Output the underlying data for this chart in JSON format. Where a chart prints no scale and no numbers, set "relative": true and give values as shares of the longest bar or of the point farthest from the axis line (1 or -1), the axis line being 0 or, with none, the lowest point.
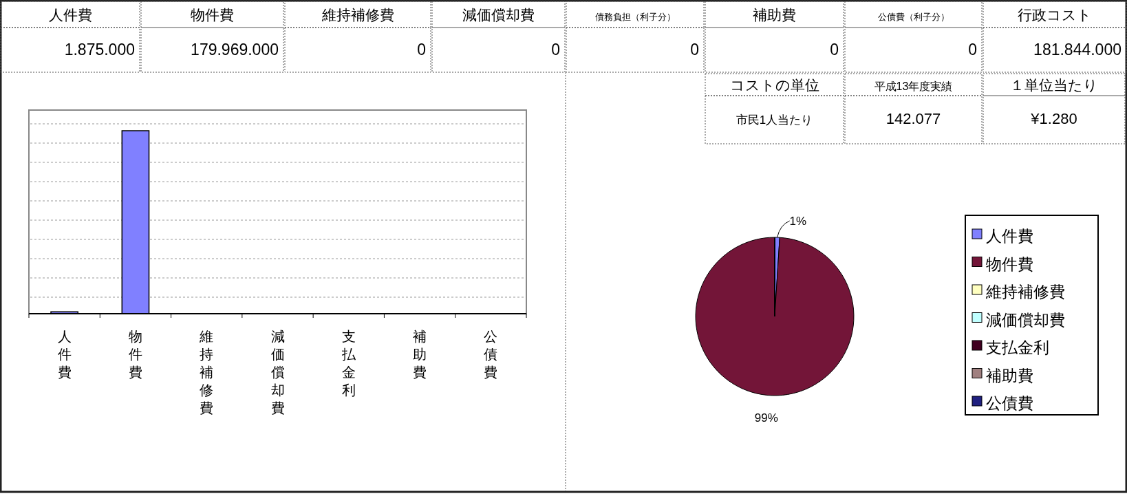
{
  "chart_data": [
    {
      "type": "other",
      "annotations": [
        "人件費",
        "物件費",
        "維持補修費",
        "減価償却費",
        "債務負担（利子分）",
        "補助費",
        "公債費（利子分）",
        "行政コスト",
        "1.875.000",
        "179.969.000",
        "0",
        "0",
        "0",
        "0",
        "0",
        "181.844.000",
        "コストの単位",
        "平成13年度実績",
        "１単位当たり",
        "市民1人当たり",
        "142.077",
        "¥1.280"
      ]
    },
    {
      "type": "bar",
      "relative": true,
      "grid": "y",
      "categories": [
        "人件費",
        "物件費",
        "維持補修費",
        "減価償却費",
        "支払金利",
        "補助費",
        "公債費"
      ],
      "series": [
        {
          "color": "#8080ff",
          "values": [
            0.0104,
            1,
            0,
            0,
            0,
            0,
            0
          ]
        }
      ]
    },
    {
      "type": "pie",
      "legend": "right",
      "categories": [
        "人件費",
        "物件費",
        "維持補修費",
        "減価償却費",
        "支払金利",
        "補助費",
        "公債費"
      ],
      "values": [
        1,
        99,
        0,
        0,
        0,
        0,
        0
      ],
      "colors": [
        "#8080ff",
        "#731538",
        "#ffffc0",
        "#c0ffff",
        "#400020",
        "#a08080",
        "#202080"
      ],
      "value_labels": [
        "1%",
        "99%",
        null,
        null,
        null,
        null,
        null
      ]
    }
  ]
}
